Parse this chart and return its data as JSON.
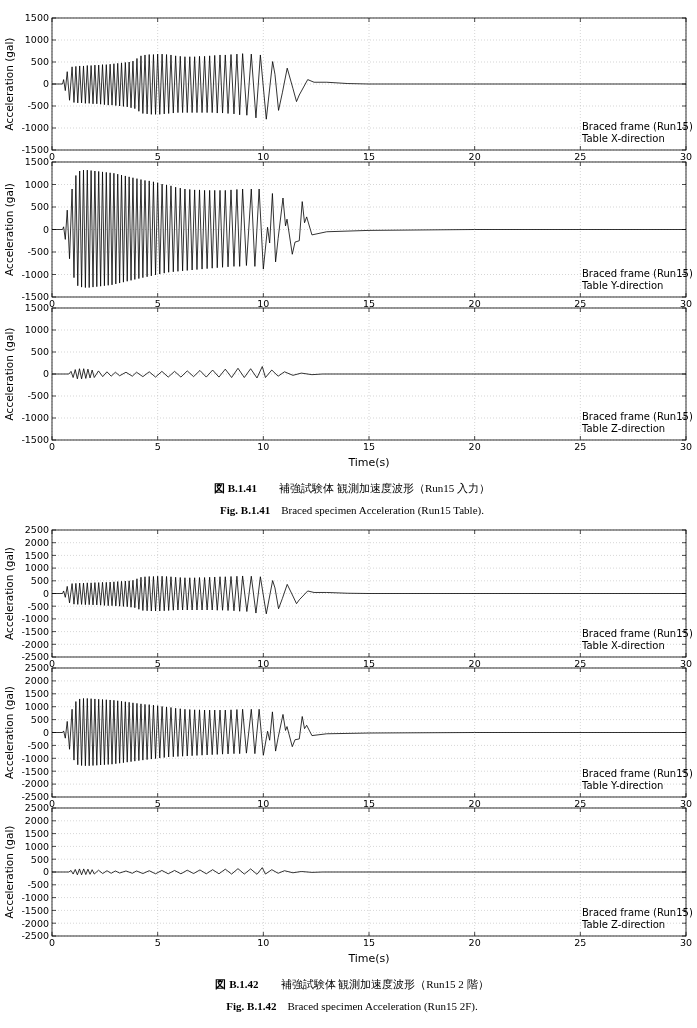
{
  "chart_data": [
    {
      "type": "line",
      "ylabel": "Acceleration (gal)",
      "xlim": [
        0,
        30
      ],
      "ylim": [
        -1500,
        1500
      ],
      "xticks": [
        0,
        5,
        10,
        15,
        20,
        25,
        30
      ],
      "yticks": [
        -1500,
        -1000,
        -500,
        0,
        500,
        1000,
        1500
      ],
      "grid": true,
      "annotations": [
        "Braced frame (Run15)",
        "Table X-direction"
      ],
      "series": [
        {
          "color": "#000000",
          "x": [
            0,
            0.5,
            0.55,
            0.63,
            0.72,
            0.83,
            0.95,
            1.04,
            1.13,
            1.22,
            1.31,
            1.4,
            1.49,
            1.58,
            1.67,
            1.76,
            1.85,
            1.94,
            2.03,
            2.12,
            2.21,
            2.3,
            2.39,
            2.48,
            2.57,
            2.66,
            2.75,
            2.84,
            2.93,
            3.02,
            3.11,
            3.2,
            3.29,
            3.38,
            3.47,
            3.56,
            3.65,
            3.74,
            3.83,
            3.92,
            4.02,
            4.11,
            4.21,
            4.3,
            4.4,
            4.5,
            4.6,
            4.7,
            4.8,
            4.9,
            5.0,
            5.1,
            5.21,
            5.31,
            5.42,
            5.52,
            5.63,
            5.74,
            5.85,
            5.96,
            6.07,
            6.18,
            6.29,
            6.4,
            6.52,
            6.63,
            6.75,
            6.86,
            6.98,
            7.1,
            7.22,
            7.34,
            7.46,
            7.58,
            7.7,
            7.82,
            7.95,
            8.07,
            8.2,
            8.33,
            8.47,
            8.61,
            8.75,
            8.88,
            9.02,
            9.22,
            9.43,
            9.65,
            9.86,
            10.14,
            10.44,
            10.55,
            10.72,
            10.9,
            11.13,
            11.4,
            11.57,
            11.7,
            12.1,
            12.4,
            13,
            14,
            15,
            30
          ],
          "values": [
            0,
            0,
            100,
            -150,
            280,
            -370,
            390,
            -420,
            400,
            -430,
            410,
            -430,
            410,
            -440,
            420,
            -440,
            420,
            -450,
            430,
            -450,
            430,
            -460,
            440,
            -470,
            440,
            -480,
            450,
            -480,
            460,
            -490,
            470,
            -500,
            480,
            -510,
            490,
            -520,
            500,
            -540,
            520,
            -560,
            580,
            -620,
            640,
            -670,
            660,
            -680,
            670,
            -690,
            670,
            -690,
            680,
            -690,
            680,
            -680,
            670,
            -670,
            660,
            -660,
            640,
            -650,
            630,
            -650,
            620,
            -650,
            620,
            -650,
            620,
            -650,
            630,
            -650,
            630,
            -650,
            640,
            -650,
            650,
            -660,
            660,
            -660,
            660,
            -670,
            670,
            -680,
            680,
            -700,
            690,
            -710,
            680,
            -770,
            660,
            -800,
            510,
            220,
            -600,
            -200,
            360,
            -100,
            -400,
            -250,
            100,
            40,
            40,
            10,
            0,
            0
          ]
        }
      ]
    },
    {
      "type": "line",
      "ylabel": "Acceleration (gal)",
      "xlim": [
        0,
        30
      ],
      "ylim": [
        -1500,
        1500
      ],
      "xticks": [
        0,
        5,
        10,
        15,
        20,
        25,
        30
      ],
      "yticks": [
        -1500,
        -1000,
        -500,
        0,
        500,
        1000,
        1500
      ],
      "grid": true,
      "annotations": [
        "Braced frame (Run15)",
        "Table Y-direction"
      ],
      "series": [
        {
          "color": "#000000",
          "x": [
            0,
            0.5,
            0.55,
            0.63,
            0.72,
            0.83,
            0.95,
            1.04,
            1.13,
            1.22,
            1.31,
            1.4,
            1.49,
            1.58,
            1.67,
            1.76,
            1.85,
            1.94,
            2.03,
            2.12,
            2.21,
            2.3,
            2.39,
            2.48,
            2.57,
            2.66,
            2.75,
            2.84,
            2.93,
            3.02,
            3.11,
            3.2,
            3.29,
            3.38,
            3.47,
            3.56,
            3.65,
            3.74,
            3.83,
            3.92,
            4.02,
            4.11,
            4.21,
            4.3,
            4.4,
            4.5,
            4.6,
            4.7,
            4.8,
            4.9,
            5.0,
            5.1,
            5.21,
            5.31,
            5.42,
            5.52,
            5.63,
            5.74,
            5.85,
            5.96,
            6.07,
            6.18,
            6.29,
            6.4,
            6.52,
            6.63,
            6.75,
            6.86,
            6.98,
            7.1,
            7.22,
            7.34,
            7.46,
            7.58,
            7.7,
            7.82,
            7.95,
            8.07,
            8.2,
            8.33,
            8.47,
            8.61,
            8.75,
            8.88,
            9.02,
            9.2,
            9.43,
            9.6,
            9.8,
            10.0,
            10.2,
            10.3,
            10.43,
            10.58,
            10.7,
            10.93,
            11.05,
            11.12,
            11.37,
            11.5,
            11.7,
            11.84,
            11.95,
            12.05,
            12.3,
            13,
            15,
            20,
            30
          ],
          "values": [
            0,
            0,
            60,
            -220,
            430,
            -650,
            900,
            -1070,
            1200,
            -1250,
            1300,
            -1280,
            1320,
            -1290,
            1320,
            -1290,
            1310,
            -1280,
            1300,
            -1270,
            1290,
            -1260,
            1280,
            -1250,
            1270,
            -1240,
            1260,
            -1230,
            1250,
            -1210,
            1230,
            -1190,
            1210,
            -1170,
            1190,
            -1150,
            1170,
            -1130,
            1150,
            -1110,
            1130,
            -1090,
            1110,
            -1070,
            1090,
            -1050,
            1080,
            -1030,
            1060,
            -1010,
            1040,
            -990,
            1010,
            -970,
            990,
            -950,
            970,
            -940,
            940,
            -930,
            920,
            -920,
            900,
            -910,
            890,
            -900,
            880,
            -890,
            880,
            -880,
            870,
            -870,
            870,
            -860,
            870,
            -850,
            870,
            -840,
            870,
            -830,
            880,
            -820,
            890,
            -820,
            900,
            -800,
            900,
            -820,
            900,
            -880,
            50,
            -300,
            800,
            -720,
            -200,
            700,
            80,
            230,
            -550,
            -280,
            -250,
            620,
            150,
            280,
            -120,
            -50,
            -20,
            0,
            0
          ]
        }
      ]
    },
    {
      "type": "line",
      "xlabel": "Time(s)",
      "ylabel": "Acceleration (gal)",
      "xlim": [
        0,
        30
      ],
      "ylim": [
        -1500,
        1500
      ],
      "xticks": [
        0,
        5,
        10,
        15,
        20,
        25,
        30
      ],
      "yticks": [
        -1500,
        -1000,
        -500,
        0,
        500,
        1000,
        1500
      ],
      "grid": true,
      "annotations": [
        "Braced frame (Run15)",
        "Table Z-direction",
        "**図 B.1.41**　　補強試験体  観測加速度波形（Run15 入力）",
        "**Fig. B.1.41**　Braced specimen Acceleration (Run15 Table)."
      ],
      "series": [
        {
          "color": "#000000",
          "x": [
            0,
            0.8,
            0.9,
            1.0,
            1.1,
            1.2,
            1.3,
            1.4,
            1.5,
            1.6,
            1.7,
            1.8,
            1.9,
            2.0,
            2.2,
            2.4,
            2.6,
            2.8,
            3.0,
            3.2,
            3.5,
            3.8,
            4.0,
            4.3,
            4.6,
            4.9,
            5.2,
            5.5,
            5.8,
            6.1,
            6.4,
            6.7,
            7.0,
            7.3,
            7.6,
            7.9,
            8.2,
            8.5,
            8.8,
            9.1,
            9.4,
            9.7,
            9.95,
            10.1,
            10.4,
            10.7,
            11.0,
            11.4,
            11.8,
            12.3,
            12.8,
            30
          ],
          "values": [
            0,
            0,
            60,
            -80,
            100,
            -110,
            120,
            -110,
            120,
            -100,
            110,
            -90,
            90,
            -80,
            70,
            -60,
            50,
            -50,
            40,
            -40,
            40,
            -50,
            40,
            -60,
            50,
            -70,
            60,
            -70,
            60,
            -70,
            70,
            -60,
            80,
            -70,
            90,
            -70,
            110,
            -80,
            130,
            -80,
            120,
            -90,
            170,
            -80,
            90,
            -50,
            50,
            -30,
            20,
            -15,
            0,
            0
          ]
        }
      ]
    },
    {
      "type": "line",
      "ylabel": "Acceleration (gal)",
      "xlim": [
        0,
        30
      ],
      "ylim": [
        -2500,
        2500
      ],
      "xticks": [
        0,
        5,
        10,
        15,
        20,
        25,
        30
      ],
      "yticks": [
        -2500,
        -2000,
        -1500,
        -1000,
        -500,
        0,
        500,
        1000,
        1500,
        2000,
        2500
      ],
      "grid": true,
      "annotations": [
        "Braced frame (Run15)",
        "Table X-direction"
      ],
      "series": [
        {
          "color": "#000000",
          "x": [
            0,
            0.5,
            0.55,
            0.63,
            0.72,
            0.83,
            0.95,
            1.04,
            1.13,
            1.22,
            1.31,
            1.4,
            1.49,
            1.58,
            1.67,
            1.76,
            1.85,
            1.94,
            2.03,
            2.12,
            2.21,
            2.3,
            2.39,
            2.48,
            2.57,
            2.66,
            2.75,
            2.84,
            2.93,
            3.02,
            3.11,
            3.2,
            3.29,
            3.38,
            3.47,
            3.56,
            3.65,
            3.74,
            3.83,
            3.92,
            4.02,
            4.11,
            4.21,
            4.3,
            4.4,
            4.5,
            4.6,
            4.7,
            4.8,
            4.9,
            5.0,
            5.1,
            5.21,
            5.31,
            5.42,
            5.52,
            5.63,
            5.74,
            5.85,
            5.96,
            6.07,
            6.18,
            6.29,
            6.4,
            6.52,
            6.63,
            6.75,
            6.86,
            6.98,
            7.1,
            7.22,
            7.34,
            7.46,
            7.58,
            7.7,
            7.82,
            7.95,
            8.07,
            8.2,
            8.33,
            8.47,
            8.61,
            8.75,
            8.88,
            9.02,
            9.22,
            9.43,
            9.65,
            9.86,
            10.14,
            10.44,
            10.55,
            10.72,
            10.9,
            11.13,
            11.4,
            11.57,
            11.7,
            12.1,
            12.4,
            13,
            14,
            15,
            30
          ],
          "values": [
            0,
            0,
            100,
            -150,
            280,
            -370,
            390,
            -420,
            400,
            -430,
            410,
            -430,
            410,
            -440,
            420,
            -440,
            420,
            -450,
            430,
            -450,
            430,
            -460,
            440,
            -470,
            440,
            -480,
            450,
            -480,
            460,
            -490,
            470,
            -500,
            480,
            -510,
            490,
            -520,
            500,
            -540,
            520,
            -560,
            580,
            -620,
            640,
            -670,
            660,
            -680,
            670,
            -690,
            670,
            -690,
            680,
            -690,
            680,
            -680,
            670,
            -670,
            660,
            -660,
            640,
            -650,
            630,
            -650,
            620,
            -650,
            620,
            -650,
            620,
            -650,
            630,
            -650,
            630,
            -650,
            640,
            -650,
            650,
            -660,
            660,
            -660,
            660,
            -670,
            670,
            -680,
            680,
            -700,
            690,
            -710,
            680,
            -770,
            660,
            -800,
            510,
            220,
            -600,
            -200,
            360,
            -100,
            -400,
            -250,
            100,
            40,
            40,
            10,
            0,
            0
          ]
        }
      ]
    },
    {
      "type": "line",
      "ylabel": "Acceleration (gal)",
      "xlim": [
        0,
        30
      ],
      "ylim": [
        -2500,
        2500
      ],
      "xticks": [
        0,
        5,
        10,
        15,
        20,
        25,
        30
      ],
      "yticks": [
        -2500,
        -2000,
        -1500,
        -1000,
        -500,
        0,
        500,
        1000,
        1500,
        2000,
        2500
      ],
      "grid": true,
      "annotations": [
        "Braced frame (Run15)",
        "Table Y-direction"
      ],
      "series": [
        {
          "color": "#000000",
          "x": [
            0,
            0.5,
            0.55,
            0.63,
            0.72,
            0.83,
            0.95,
            1.04,
            1.13,
            1.22,
            1.31,
            1.4,
            1.49,
            1.58,
            1.67,
            1.76,
            1.85,
            1.94,
            2.03,
            2.12,
            2.21,
            2.3,
            2.39,
            2.48,
            2.57,
            2.66,
            2.75,
            2.84,
            2.93,
            3.02,
            3.11,
            3.2,
            3.29,
            3.38,
            3.47,
            3.56,
            3.65,
            3.74,
            3.83,
            3.92,
            4.02,
            4.11,
            4.21,
            4.3,
            4.4,
            4.5,
            4.6,
            4.7,
            4.8,
            4.9,
            5.0,
            5.1,
            5.21,
            5.31,
            5.42,
            5.52,
            5.63,
            5.74,
            5.85,
            5.96,
            6.07,
            6.18,
            6.29,
            6.4,
            6.52,
            6.63,
            6.75,
            6.86,
            6.98,
            7.1,
            7.22,
            7.34,
            7.46,
            7.58,
            7.7,
            7.82,
            7.95,
            8.07,
            8.2,
            8.33,
            8.47,
            8.61,
            8.75,
            8.88,
            9.02,
            9.2,
            9.43,
            9.6,
            9.8,
            10.0,
            10.2,
            10.3,
            10.43,
            10.58,
            10.7,
            10.93,
            11.05,
            11.12,
            11.37,
            11.5,
            11.7,
            11.84,
            11.95,
            12.05,
            12.3,
            13,
            15,
            20,
            30
          ],
          "values": [
            0,
            0,
            60,
            -220,
            430,
            -650,
            900,
            -1070,
            1200,
            -1250,
            1300,
            -1280,
            1320,
            -1290,
            1320,
            -1290,
            1310,
            -1280,
            1300,
            -1270,
            1290,
            -1260,
            1280,
            -1250,
            1270,
            -1240,
            1260,
            -1230,
            1250,
            -1210,
            1230,
            -1190,
            1210,
            -1170,
            1190,
            -1150,
            1170,
            -1130,
            1150,
            -1110,
            1130,
            -1090,
            1110,
            -1070,
            1090,
            -1050,
            1080,
            -1030,
            1060,
            -1010,
            1040,
            -990,
            1010,
            -970,
            990,
            -950,
            970,
            -940,
            940,
            -930,
            920,
            -920,
            900,
            -910,
            890,
            -900,
            880,
            -890,
            880,
            -880,
            870,
            -870,
            870,
            -860,
            870,
            -850,
            870,
            -840,
            870,
            -830,
            880,
            -820,
            890,
            -820,
            900,
            -800,
            900,
            -820,
            900,
            -880,
            50,
            -300,
            800,
            -720,
            -200,
            700,
            80,
            230,
            -550,
            -280,
            -250,
            620,
            150,
            280,
            -120,
            -50,
            -20,
            0,
            0
          ]
        }
      ]
    },
    {
      "type": "line",
      "xlabel": "Time(s)",
      "ylabel": "Acceleration (gal)",
      "xlim": [
        0,
        30
      ],
      "ylim": [
        -2500,
        2500
      ],
      "xticks": [
        0,
        5,
        10,
        15,
        20,
        25,
        30
      ],
      "yticks": [
        -2500,
        -2000,
        -1500,
        -1000,
        -500,
        0,
        500,
        1000,
        1500,
        2000,
        2500
      ],
      "grid": true,
      "annotations": [
        "Braced frame (Run15)",
        "Table Z-direction",
        "**図 B.1.42**　　補強試験体  観測加速度波形（Run15 2 階）",
        "**Fig. B.1.42**　Braced specimen Acceleration (Run15 2F)."
      ],
      "series": [
        {
          "color": "#000000",
          "x": [
            0,
            0.8,
            0.9,
            1.0,
            1.1,
            1.2,
            1.3,
            1.4,
            1.5,
            1.6,
            1.7,
            1.8,
            1.9,
            2.0,
            2.2,
            2.4,
            2.6,
            2.8,
            3.0,
            3.2,
            3.5,
            3.8,
            4.0,
            4.3,
            4.6,
            4.9,
            5.2,
            5.5,
            5.8,
            6.1,
            6.4,
            6.7,
            7.0,
            7.3,
            7.6,
            7.9,
            8.2,
            8.5,
            8.8,
            9.1,
            9.4,
            9.7,
            9.95,
            10.1,
            10.4,
            10.7,
            11.0,
            11.4,
            11.8,
            12.3,
            12.8,
            30
          ],
          "values": [
            0,
            0,
            60,
            -80,
            100,
            -110,
            120,
            -110,
            120,
            -100,
            110,
            -90,
            90,
            -80,
            70,
            -60,
            50,
            -50,
            40,
            -40,
            40,
            -50,
            40,
            -60,
            50,
            -70,
            60,
            -70,
            60,
            -70,
            70,
            -60,
            80,
            -70,
            90,
            -70,
            110,
            -80,
            130,
            -80,
            120,
            -90,
            170,
            -80,
            90,
            -50,
            50,
            -30,
            20,
            -15,
            0,
            0
          ]
        }
      ]
    }
  ]
}
